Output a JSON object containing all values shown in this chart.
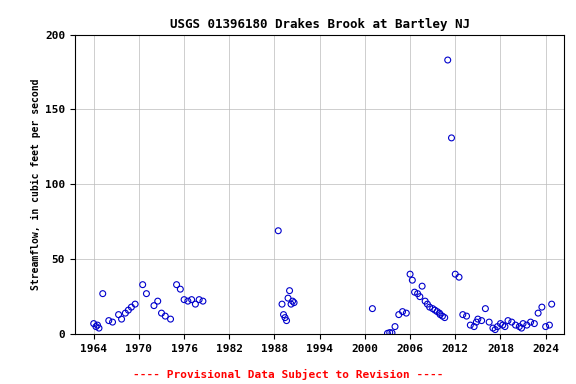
{
  "title": "USGS 01396180 Drakes Brook at Bartley NJ",
  "ylabel": "Streamflow, in cubic feet per second",
  "footer": "---- Provisional Data Subject to Revision ----",
  "footer_color": "#ff0000",
  "point_color": "#0000cc",
  "background_color": "#ffffff",
  "grid_color": "#bbbbbb",
  "xlim": [
    1961.5,
    2026.5
  ],
  "ylim": [
    0,
    200
  ],
  "xticks": [
    1964,
    1970,
    1976,
    1982,
    1988,
    1994,
    2000,
    2006,
    2012,
    2018,
    2024
  ],
  "yticks": [
    0,
    50,
    100,
    150,
    200
  ],
  "marker_size": 18,
  "data": [
    [
      1964.0,
      7.0
    ],
    [
      1964.3,
      5.0
    ],
    [
      1964.5,
      6.0
    ],
    [
      1964.7,
      4.0
    ],
    [
      1965.2,
      27.0
    ],
    [
      1966.0,
      9.0
    ],
    [
      1966.5,
      8.0
    ],
    [
      1967.3,
      13.0
    ],
    [
      1967.7,
      10.0
    ],
    [
      1968.2,
      14.0
    ],
    [
      1968.6,
      16.0
    ],
    [
      1969.0,
      18.0
    ],
    [
      1969.5,
      20.0
    ],
    [
      1970.5,
      33.0
    ],
    [
      1971.0,
      27.0
    ],
    [
      1972.0,
      19.0
    ],
    [
      1972.5,
      22.0
    ],
    [
      1973.0,
      14.0
    ],
    [
      1973.5,
      12.0
    ],
    [
      1974.2,
      10.0
    ],
    [
      1975.0,
      33.0
    ],
    [
      1975.5,
      30.0
    ],
    [
      1976.0,
      23.0
    ],
    [
      1976.5,
      22.0
    ],
    [
      1977.0,
      23.0
    ],
    [
      1977.5,
      20.0
    ],
    [
      1978.0,
      23.0
    ],
    [
      1978.5,
      22.0
    ],
    [
      1988.5,
      69.0
    ],
    [
      1989.0,
      20.0
    ],
    [
      1989.2,
      13.0
    ],
    [
      1989.4,
      11.0
    ],
    [
      1989.6,
      9.0
    ],
    [
      1989.8,
      24.0
    ],
    [
      1990.0,
      29.0
    ],
    [
      1990.2,
      20.0
    ],
    [
      1990.4,
      22.0
    ],
    [
      1990.6,
      21.0
    ],
    [
      2001.0,
      17.0
    ],
    [
      2003.0,
      0.5
    ],
    [
      2003.3,
      1.0
    ],
    [
      2003.6,
      0.8
    ],
    [
      2004.0,
      5.0
    ],
    [
      2004.5,
      13.0
    ],
    [
      2005.0,
      15.0
    ],
    [
      2005.5,
      14.0
    ],
    [
      2006.0,
      40.0
    ],
    [
      2006.3,
      36.0
    ],
    [
      2006.6,
      28.0
    ],
    [
      2007.0,
      27.0
    ],
    [
      2007.3,
      25.0
    ],
    [
      2007.6,
      32.0
    ],
    [
      2008.0,
      22.0
    ],
    [
      2008.3,
      20.0
    ],
    [
      2008.6,
      18.0
    ],
    [
      2009.0,
      17.0
    ],
    [
      2009.3,
      16.0
    ],
    [
      2009.6,
      15.0
    ],
    [
      2009.9,
      14.0
    ],
    [
      2010.0,
      13.0
    ],
    [
      2010.3,
      12.0
    ],
    [
      2010.6,
      11.0
    ],
    [
      2011.0,
      183.0
    ],
    [
      2011.5,
      131.0
    ],
    [
      2012.0,
      40.0
    ],
    [
      2012.5,
      38.0
    ],
    [
      2013.0,
      13.0
    ],
    [
      2013.5,
      12.0
    ],
    [
      2014.0,
      6.0
    ],
    [
      2014.5,
      5.0
    ],
    [
      2014.8,
      8.0
    ],
    [
      2015.0,
      10.0
    ],
    [
      2015.5,
      9.0
    ],
    [
      2016.0,
      17.0
    ],
    [
      2016.5,
      8.0
    ],
    [
      2017.0,
      4.0
    ],
    [
      2017.3,
      3.0
    ],
    [
      2017.6,
      5.0
    ],
    [
      2018.0,
      7.0
    ],
    [
      2018.3,
      6.0
    ],
    [
      2018.6,
      5.0
    ],
    [
      2019.0,
      9.0
    ],
    [
      2019.5,
      8.0
    ],
    [
      2020.0,
      6.0
    ],
    [
      2020.5,
      5.0
    ],
    [
      2020.8,
      4.0
    ],
    [
      2021.0,
      7.0
    ],
    [
      2021.5,
      6.0
    ],
    [
      2022.0,
      8.0
    ],
    [
      2022.5,
      7.0
    ],
    [
      2023.0,
      14.0
    ],
    [
      2023.5,
      18.0
    ],
    [
      2024.0,
      5.0
    ],
    [
      2024.5,
      6.0
    ],
    [
      2024.8,
      20.0
    ]
  ]
}
